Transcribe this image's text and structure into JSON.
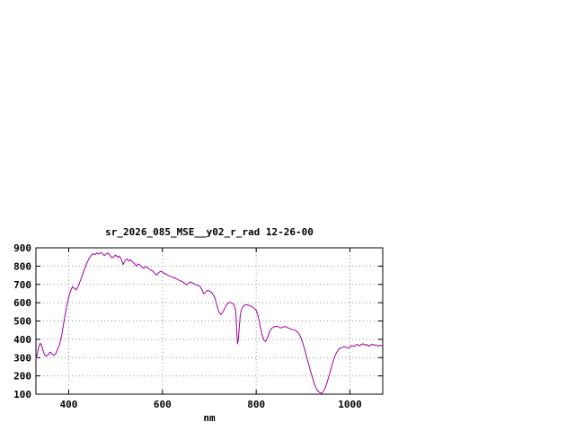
{
  "page": {
    "background_color": "#ffffff"
  },
  "chart_data": {
    "type": "line",
    "title": "sr_2026_085_MSE__y02_r_rad 12-26-00",
    "xlabel": "nm",
    "ylabel": "",
    "xlim": [
      330,
      1070
    ],
    "ylim": [
      100,
      900
    ],
    "xticks": [
      400,
      600,
      800,
      1000
    ],
    "yticks": [
      100,
      200,
      300,
      400,
      500,
      600,
      700,
      800,
      900
    ],
    "grid": true,
    "grid_style": "dotted",
    "legend_position": "none",
    "line_color": "#a000a0",
    "axis_color": "#000000",
    "grid_color": "#909090",
    "points": [
      [
        330,
        295
      ],
      [
        333,
        320
      ],
      [
        336,
        360
      ],
      [
        339,
        378
      ],
      [
        342,
        370
      ],
      [
        345,
        340
      ],
      [
        348,
        318
      ],
      [
        352,
        308
      ],
      [
        356,
        315
      ],
      [
        360,
        330
      ],
      [
        364,
        322
      ],
      [
        368,
        312
      ],
      [
        372,
        320
      ],
      [
        376,
        345
      ],
      [
        380,
        368
      ],
      [
        384,
        410
      ],
      [
        388,
        470
      ],
      [
        392,
        530
      ],
      [
        396,
        585
      ],
      [
        400,
        630
      ],
      [
        404,
        665
      ],
      [
        408,
        688
      ],
      [
        412,
        678
      ],
      [
        416,
        670
      ],
      [
        420,
        690
      ],
      [
        424,
        715
      ],
      [
        428,
        742
      ],
      [
        432,
        772
      ],
      [
        436,
        800
      ],
      [
        440,
        825
      ],
      [
        444,
        845
      ],
      [
        448,
        858
      ],
      [
        452,
        868
      ],
      [
        456,
        862
      ],
      [
        460,
        872
      ],
      [
        464,
        866
      ],
      [
        468,
        874
      ],
      [
        472,
        868
      ],
      [
        476,
        858
      ],
      [
        480,
        866
      ],
      [
        484,
        872
      ],
      [
        488,
        860
      ],
      [
        492,
        845
      ],
      [
        496,
        852
      ],
      [
        500,
        860
      ],
      [
        504,
        848
      ],
      [
        508,
        855
      ],
      [
        512,
        838
      ],
      [
        516,
        808
      ],
      [
        520,
        830
      ],
      [
        524,
        840
      ],
      [
        528,
        828
      ],
      [
        532,
        835
      ],
      [
        536,
        822
      ],
      [
        540,
        815
      ],
      [
        544,
        800
      ],
      [
        548,
        812
      ],
      [
        552,
        806
      ],
      [
        556,
        795
      ],
      [
        560,
        788
      ],
      [
        564,
        798
      ],
      [
        568,
        792
      ],
      [
        572,
        784
      ],
      [
        576,
        778
      ],
      [
        580,
        772
      ],
      [
        584,
        758
      ],
      [
        588,
        752
      ],
      [
        592,
        765
      ],
      [
        596,
        772
      ],
      [
        600,
        768
      ],
      [
        604,
        760
      ],
      [
        608,
        755
      ],
      [
        612,
        750
      ],
      [
        616,
        745
      ],
      [
        620,
        742
      ],
      [
        624,
        738
      ],
      [
        628,
        733
      ],
      [
        632,
        728
      ],
      [
        636,
        722
      ],
      [
        640,
        718
      ],
      [
        644,
        712
      ],
      [
        648,
        705
      ],
      [
        652,
        698
      ],
      [
        656,
        708
      ],
      [
        660,
        714
      ],
      [
        664,
        708
      ],
      [
        668,
        702
      ],
      [
        672,
        698
      ],
      [
        676,
        694
      ],
      [
        680,
        690
      ],
      [
        684,
        672
      ],
      [
        688,
        648
      ],
      [
        692,
        658
      ],
      [
        696,
        668
      ],
      [
        700,
        664
      ],
      [
        704,
        658
      ],
      [
        708,
        645
      ],
      [
        712,
        625
      ],
      [
        716,
        588
      ],
      [
        720,
        552
      ],
      [
        724,
        535
      ],
      [
        728,
        545
      ],
      [
        732,
        565
      ],
      [
        736,
        585
      ],
      [
        740,
        598
      ],
      [
        744,
        602
      ],
      [
        748,
        598
      ],
      [
        752,
        592
      ],
      [
        756,
        560
      ],
      [
        758,
        470
      ],
      [
        760,
        375
      ],
      [
        762,
        400
      ],
      [
        764,
        470
      ],
      [
        766,
        530
      ],
      [
        768,
        560
      ],
      [
        772,
        580
      ],
      [
        776,
        588
      ],
      [
        780,
        590
      ],
      [
        784,
        586
      ],
      [
        788,
        582
      ],
      [
        792,
        576
      ],
      [
        796,
        568
      ],
      [
        800,
        558
      ],
      [
        804,
        530
      ],
      [
        808,
        480
      ],
      [
        812,
        430
      ],
      [
        816,
        398
      ],
      [
        820,
        388
      ],
      [
        824,
        408
      ],
      [
        828,
        438
      ],
      [
        832,
        458
      ],
      [
        836,
        465
      ],
      [
        840,
        470
      ],
      [
        844,
        472
      ],
      [
        848,
        468
      ],
      [
        852,
        462
      ],
      [
        856,
        465
      ],
      [
        860,
        470
      ],
      [
        864,
        468
      ],
      [
        868,
        462
      ],
      [
        872,
        458
      ],
      [
        876,
        455
      ],
      [
        880,
        452
      ],
      [
        884,
        448
      ],
      [
        888,
        440
      ],
      [
        892,
        428
      ],
      [
        896,
        405
      ],
      [
        900,
        375
      ],
      [
        904,
        340
      ],
      [
        908,
        300
      ],
      [
        912,
        262
      ],
      [
        916,
        225
      ],
      [
        920,
        190
      ],
      [
        924,
        158
      ],
      [
        928,
        132
      ],
      [
        932,
        116
      ],
      [
        936,
        108
      ],
      [
        940,
        106
      ],
      [
        944,
        118
      ],
      [
        948,
        140
      ],
      [
        952,
        170
      ],
      [
        956,
        205
      ],
      [
        960,
        242
      ],
      [
        964,
        278
      ],
      [
        968,
        308
      ],
      [
        972,
        330
      ],
      [
        976,
        345
      ],
      [
        980,
        352
      ],
      [
        984,
        356
      ],
      [
        988,
        360
      ],
      [
        992,
        356
      ],
      [
        996,
        352
      ],
      [
        1000,
        358
      ],
      [
        1004,
        366
      ],
      [
        1008,
        360
      ],
      [
        1012,
        368
      ],
      [
        1016,
        372
      ],
      [
        1020,
        364
      ],
      [
        1024,
        372
      ],
      [
        1028,
        376
      ],
      [
        1032,
        368
      ],
      [
        1036,
        372
      ],
      [
        1040,
        362
      ],
      [
        1044,
        368
      ],
      [
        1048,
        374
      ],
      [
        1052,
        366
      ],
      [
        1056,
        370
      ],
      [
        1060,
        362
      ],
      [
        1064,
        368
      ],
      [
        1068,
        365
      ]
    ]
  }
}
